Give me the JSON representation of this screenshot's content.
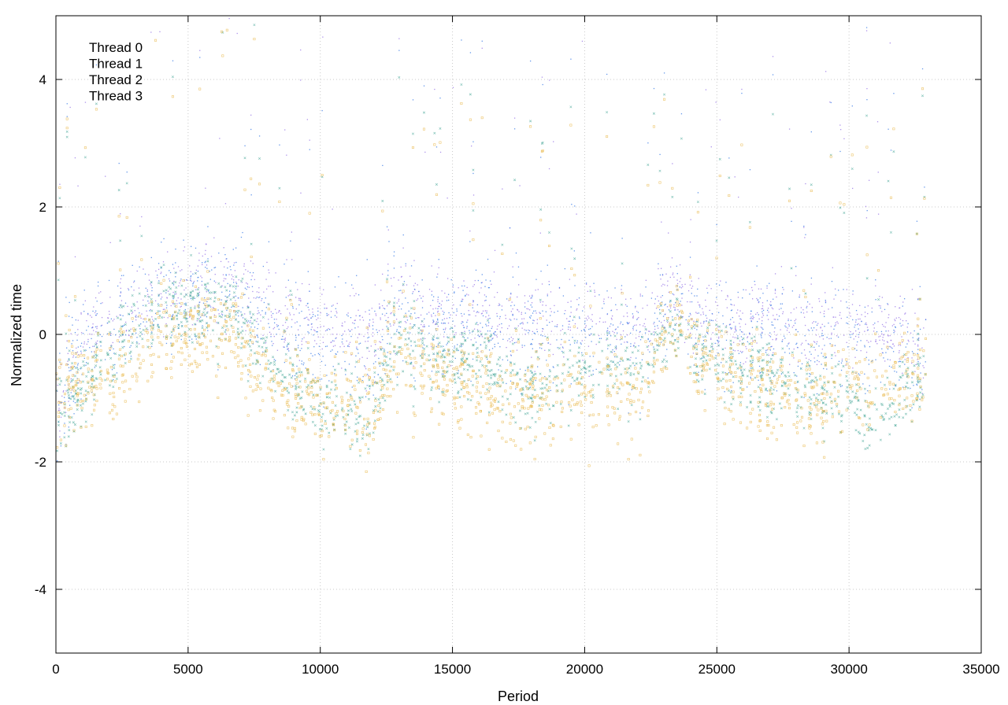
{
  "chart_data": {
    "type": "scatter",
    "xlabel": "Period",
    "ylabel": "Normalized time",
    "xlim": [
      0,
      35000
    ],
    "ylim": [
      -5,
      5
    ],
    "x_ticks": [
      "0",
      "5000",
      "10000",
      "15000",
      "20000",
      "25000",
      "30000",
      "35000"
    ],
    "y_ticks": [
      "-4",
      "-2",
      "0",
      "2",
      "4"
    ],
    "x_tick_values": [
      0,
      5000,
      10000,
      15000,
      20000,
      25000,
      30000,
      35000
    ],
    "y_tick_values": [
      -4,
      -2,
      0,
      2,
      4
    ],
    "grid": true,
    "legend_position": "top-left",
    "series": [
      {
        "name": "Thread 0",
        "color": "#9f7fe8",
        "marker": "dot",
        "x_range": [
          0,
          32900
        ],
        "mean_profile": {
          "x": [
            0,
            1000,
            2500,
            4000,
            5500,
            7000,
            8500,
            10000,
            11500,
            13000,
            14500,
            16000,
            18000,
            20000,
            22000,
            23500,
            25000,
            27000,
            29000,
            31000,
            32900
          ],
          "y": [
            -1.1,
            0.0,
            0.4,
            0.6,
            0.8,
            0.7,
            0.3,
            0.2,
            -0.1,
            0.6,
            0.3,
            0.3,
            0.2,
            0.3,
            0.2,
            0.6,
            0.2,
            0.2,
            0.1,
            0.1,
            -0.2
          ]
        },
        "spread": 0.45
      },
      {
        "name": "Thread 1",
        "color": "#4a86e8",
        "marker": "dot",
        "x_range": [
          0,
          32900
        ],
        "mean_profile": {
          "x": [
            0,
            1000,
            2500,
            4000,
            5500,
            7000,
            8500,
            10000,
            11500,
            13000,
            14500,
            16000,
            18000,
            20000,
            22000,
            23500,
            25000,
            27000,
            29000,
            31000,
            32900
          ],
          "y": [
            -1.1,
            -0.2,
            0.3,
            0.5,
            0.7,
            0.6,
            0.1,
            0.0,
            -0.3,
            0.4,
            0.1,
            0.2,
            0.0,
            0.1,
            0.0,
            0.4,
            0.0,
            0.0,
            -0.1,
            -0.1,
            -0.4
          ]
        },
        "spread": 0.65
      },
      {
        "name": "Thread 2",
        "color": "#4aa89a",
        "marker": "cross",
        "x_range": [
          0,
          32900
        ],
        "mean_profile": {
          "x": [
            0,
            1000,
            2500,
            4000,
            5500,
            7000,
            8500,
            10000,
            11500,
            13000,
            14500,
            16000,
            18000,
            20000,
            22000,
            23500,
            25000,
            27000,
            29000,
            31000,
            32900
          ],
          "y": [
            -1.2,
            -0.9,
            0.0,
            0.4,
            0.5,
            0.2,
            -0.6,
            -1.0,
            -1.4,
            0.0,
            -0.4,
            -0.4,
            -0.9,
            -0.5,
            -0.5,
            0.1,
            -0.4,
            -0.7,
            -0.9,
            -1.3,
            -0.6
          ]
        },
        "spread": 0.45
      },
      {
        "name": "Thread 3",
        "color": "#e8b84a",
        "marker": "square",
        "x_range": [
          0,
          32900
        ],
        "mean_profile": {
          "x": [
            0,
            1000,
            2500,
            4000,
            5500,
            7000,
            8500,
            10000,
            11500,
            13000,
            14500,
            16000,
            18000,
            20000,
            22000,
            23500,
            25000,
            27000,
            29000,
            31000,
            32900
          ],
          "y": [
            -1.0,
            -0.8,
            -0.5,
            0.0,
            0.2,
            -0.2,
            -0.8,
            -1.0,
            -1.2,
            -0.3,
            -0.6,
            -0.9,
            -1.0,
            -0.9,
            -0.9,
            0.2,
            -0.6,
            -0.9,
            -1.0,
            -0.8,
            -0.6
          ]
        },
        "spread": 0.55
      }
    ]
  }
}
